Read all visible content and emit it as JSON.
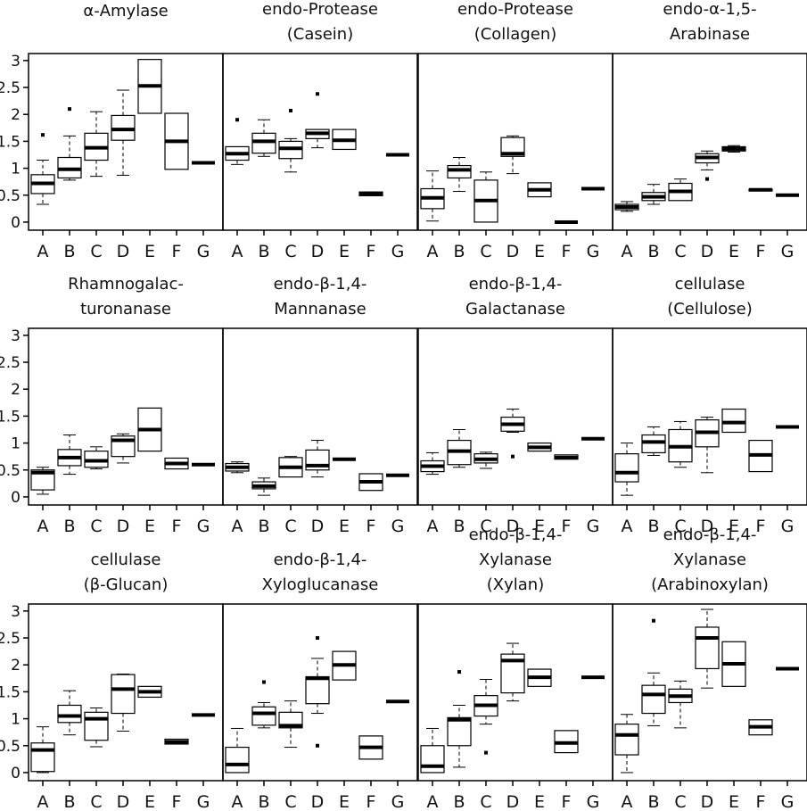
{
  "chart_data": [
    {
      "type": "box",
      "title": [
        "α-Amylase"
      ],
      "categories": [
        "A",
        "B",
        "C",
        "D",
        "E",
        "F",
        "G"
      ],
      "ylim": [
        -0.15,
        3.13
      ],
      "yticks": [
        0,
        0.5,
        1,
        1.5,
        2,
        2.5,
        3
      ],
      "boxes": [
        {
          "whislo": 0.33,
          "q1": 0.53,
          "med": 0.72,
          "q3": 0.88,
          "whishi": 1.15,
          "fliers": [
            1.62
          ]
        },
        {
          "whislo": 0.78,
          "q1": 0.82,
          "med": 0.98,
          "q3": 1.2,
          "whishi": 1.6,
          "fliers": [
            2.1
          ]
        },
        {
          "whislo": 0.85,
          "q1": 1.15,
          "med": 1.38,
          "q3": 1.65,
          "whishi": 2.05
        },
        {
          "whislo": 0.87,
          "q1": 1.52,
          "med": 1.72,
          "q3": 1.98,
          "whishi": 2.45
        },
        {
          "whislo": 2.02,
          "q1": 2.02,
          "med": 2.53,
          "q3": 3.02,
          "whishi": 3.02
        },
        {
          "whislo": 0.98,
          "q1": 0.98,
          "med": 1.5,
          "q3": 2.02,
          "whishi": 2.02
        },
        {
          "whislo": 1.1,
          "q1": 1.1,
          "med": 1.1,
          "q3": 1.1,
          "whishi": 1.1
        }
      ]
    },
    {
      "type": "box",
      "title": [
        "endo-Protease",
        "(Casein)"
      ],
      "categories": [
        "A",
        "B",
        "C",
        "D",
        "E",
        "F",
        "G"
      ],
      "ylim": [
        -0.15,
        3.13
      ],
      "boxes": [
        {
          "whislo": 1.07,
          "q1": 1.15,
          "med": 1.27,
          "q3": 1.4,
          "whishi": 1.4,
          "fliers": [
            1.9
          ]
        },
        {
          "whislo": 1.22,
          "q1": 1.28,
          "med": 1.5,
          "q3": 1.65,
          "whishi": 1.9
        },
        {
          "whislo": 0.93,
          "q1": 1.18,
          "med": 1.37,
          "q3": 1.5,
          "whishi": 1.55,
          "fliers": [
            2.07
          ]
        },
        {
          "whislo": 1.38,
          "q1": 1.55,
          "med": 1.65,
          "q3": 1.72,
          "whishi": 1.72,
          "fliers": [
            2.38
          ]
        },
        {
          "whislo": 1.35,
          "q1": 1.35,
          "med": 1.52,
          "q3": 1.72,
          "whishi": 1.72
        },
        {
          "whislo": 0.49,
          "q1": 0.49,
          "med": 0.52,
          "q3": 0.56,
          "whishi": 0.56
        },
        {
          "whislo": 1.25,
          "q1": 1.25,
          "med": 1.25,
          "q3": 1.25,
          "whishi": 1.25
        }
      ]
    },
    {
      "type": "box",
      "title": [
        "endo-Protease",
        "(Collagen)"
      ],
      "categories": [
        "A",
        "B",
        "C",
        "D",
        "E",
        "F",
        "G"
      ],
      "ylim": [
        -0.15,
        3.13
      ],
      "boxes": [
        {
          "whislo": 0.02,
          "q1": 0.25,
          "med": 0.45,
          "q3": 0.62,
          "whishi": 0.95
        },
        {
          "whislo": 0.57,
          "q1": 0.82,
          "med": 0.97,
          "q3": 1.05,
          "whishi": 1.2
        },
        {
          "whislo": 0.0,
          "q1": 0.0,
          "med": 0.4,
          "q3": 0.78,
          "whishi": 0.93
        },
        {
          "whislo": 0.9,
          "q1": 1.22,
          "med": 1.27,
          "q3": 1.57,
          "whishi": 1.6
        },
        {
          "whislo": 0.47,
          "q1": 0.47,
          "med": 0.6,
          "q3": 0.73,
          "whishi": 0.73
        },
        {
          "whislo": 0.0,
          "q1": 0.0,
          "med": 0.0,
          "q3": 0.0,
          "whishi": 0.0
        },
        {
          "whislo": 0.62,
          "q1": 0.62,
          "med": 0.62,
          "q3": 0.62,
          "whishi": 0.62
        }
      ]
    },
    {
      "type": "box",
      "title": [
        "endo-α-1,5-",
        "Arabinase"
      ],
      "categories": [
        "A",
        "B",
        "C",
        "D",
        "E",
        "F",
        "G"
      ],
      "ylim": [
        -0.15,
        3.13
      ],
      "boxes": [
        {
          "whislo": 0.2,
          "q1": 0.23,
          "med": 0.28,
          "q3": 0.33,
          "whishi": 0.38
        },
        {
          "whislo": 0.33,
          "q1": 0.4,
          "med": 0.47,
          "q3": 0.55,
          "whishi": 0.7
        },
        {
          "whislo": 0.4,
          "q1": 0.4,
          "med": 0.57,
          "q3": 0.72,
          "whishi": 0.8
        },
        {
          "whislo": 0.97,
          "q1": 1.1,
          "med": 1.2,
          "q3": 1.27,
          "whishi": 1.32,
          "fliers": [
            0.8
          ]
        },
        {
          "whislo": 1.3,
          "q1": 1.32,
          "med": 1.36,
          "q3": 1.4,
          "whishi": 1.42
        },
        {
          "whislo": 0.58,
          "q1": 0.58,
          "med": 0.6,
          "q3": 0.61,
          "whishi": 0.61
        },
        {
          "whislo": 0.5,
          "q1": 0.5,
          "med": 0.5,
          "q3": 0.5,
          "whishi": 0.5
        }
      ]
    },
    {
      "type": "box",
      "title": [
        "Rhamnogalac-",
        "turonanase"
      ],
      "categories": [
        "A",
        "B",
        "C",
        "D",
        "E",
        "F",
        "G"
      ],
      "ylim": [
        -0.15,
        3.13
      ],
      "yticks": [
        0,
        0.5,
        1,
        1.5,
        2,
        2.5,
        3
      ],
      "boxes": [
        {
          "whislo": 0.05,
          "q1": 0.13,
          "med": 0.45,
          "q3": 0.5,
          "whishi": 0.55
        },
        {
          "whislo": 0.42,
          "q1": 0.58,
          "med": 0.73,
          "q3": 0.88,
          "whishi": 1.15
        },
        {
          "whislo": 0.52,
          "q1": 0.55,
          "med": 0.67,
          "q3": 0.85,
          "whishi": 0.93
        },
        {
          "whislo": 0.63,
          "q1": 0.75,
          "med": 1.05,
          "q3": 1.13,
          "whishi": 1.17
        },
        {
          "whislo": 0.85,
          "q1": 0.85,
          "med": 1.25,
          "q3": 1.65,
          "whishi": 1.65
        },
        {
          "whislo": 0.52,
          "q1": 0.52,
          "med": 0.62,
          "q3": 0.72,
          "whishi": 0.72
        },
        {
          "whislo": 0.6,
          "q1": 0.6,
          "med": 0.6,
          "q3": 0.6,
          "whishi": 0.6
        }
      ]
    },
    {
      "type": "box",
      "title": [
        "endo-β-1,4-",
        "Mannanase"
      ],
      "categories": [
        "A",
        "B",
        "C",
        "D",
        "E",
        "F",
        "G"
      ],
      "ylim": [
        -0.15,
        3.13
      ],
      "boxes": [
        {
          "whislo": 0.45,
          "q1": 0.48,
          "med": 0.55,
          "q3": 0.62,
          "whishi": 0.65
        },
        {
          "whislo": 0.03,
          "q1": 0.15,
          "med": 0.2,
          "q3": 0.28,
          "whishi": 0.35
        },
        {
          "whislo": 0.37,
          "q1": 0.37,
          "med": 0.55,
          "q3": 0.73,
          "whishi": 0.75
        },
        {
          "whislo": 0.37,
          "q1": 0.5,
          "med": 0.58,
          "q3": 0.87,
          "whishi": 1.05
        },
        {
          "whislo": 0.7,
          "q1": 0.7,
          "med": 0.7,
          "q3": 0.7,
          "whishi": 0.7
        },
        {
          "whislo": 0.12,
          "q1": 0.12,
          "med": 0.28,
          "q3": 0.43,
          "whishi": 0.43
        },
        {
          "whislo": 0.4,
          "q1": 0.4,
          "med": 0.4,
          "q3": 0.4,
          "whishi": 0.4
        }
      ]
    },
    {
      "type": "box",
      "title": [
        "endo-β-1,4-",
        "Galactanase"
      ],
      "categories": [
        "A",
        "B",
        "C",
        "D",
        "E",
        "F",
        "G"
      ],
      "ylim": [
        -0.15,
        3.13
      ],
      "boxes": [
        {
          "whislo": 0.42,
          "q1": 0.47,
          "med": 0.57,
          "q3": 0.67,
          "whishi": 0.82
        },
        {
          "whislo": 0.55,
          "q1": 0.6,
          "med": 0.85,
          "q3": 1.05,
          "whishi": 1.25
        },
        {
          "whislo": 0.53,
          "q1": 0.63,
          "med": 0.7,
          "q3": 0.8,
          "whishi": 0.83
        },
        {
          "whislo": 1.2,
          "q1": 1.22,
          "med": 1.35,
          "q3": 1.48,
          "whishi": 1.63,
          "fliers": [
            0.75
          ]
        },
        {
          "whislo": 0.85,
          "q1": 0.85,
          "med": 0.92,
          "q3": 1.0,
          "whishi": 1.0
        },
        {
          "whislo": 0.7,
          "q1": 0.7,
          "med": 0.73,
          "q3": 0.78,
          "whishi": 0.78
        },
        {
          "whislo": 1.08,
          "q1": 1.08,
          "med": 1.08,
          "q3": 1.08,
          "whishi": 1.08
        }
      ]
    },
    {
      "type": "box",
      "title": [
        "cellulase",
        "(Cellulose)"
      ],
      "categories": [
        "A",
        "B",
        "C",
        "D",
        "E",
        "F",
        "G"
      ],
      "ylim": [
        -0.15,
        3.13
      ],
      "boxes": [
        {
          "whislo": 0.03,
          "q1": 0.28,
          "med": 0.45,
          "q3": 0.8,
          "whishi": 1.0
        },
        {
          "whislo": 0.77,
          "q1": 0.82,
          "med": 1.02,
          "q3": 1.15,
          "whishi": 1.3
        },
        {
          "whislo": 0.55,
          "q1": 0.65,
          "med": 0.93,
          "q3": 1.25,
          "whishi": 1.4
        },
        {
          "whislo": 0.45,
          "q1": 0.93,
          "med": 1.2,
          "q3": 1.43,
          "whishi": 1.48
        },
        {
          "whislo": 1.2,
          "q1": 1.2,
          "med": 1.38,
          "q3": 1.63,
          "whishi": 1.63
        },
        {
          "whislo": 0.47,
          "q1": 0.47,
          "med": 0.78,
          "q3": 1.05,
          "whishi": 1.05
        },
        {
          "whislo": 1.3,
          "q1": 1.3,
          "med": 1.3,
          "q3": 1.3,
          "whishi": 1.3
        }
      ]
    },
    {
      "type": "box",
      "title": [
        "cellulase",
        "(β-Glucan)"
      ],
      "categories": [
        "A",
        "B",
        "C",
        "D",
        "E",
        "F",
        "G"
      ],
      "ylim": [
        -0.15,
        3.13
      ],
      "yticks": [
        0,
        0.5,
        1,
        1.5,
        2,
        2.5,
        3
      ],
      "boxes": [
        {
          "whislo": 0.0,
          "q1": 0.02,
          "med": 0.42,
          "q3": 0.55,
          "whishi": 0.85
        },
        {
          "whislo": 0.7,
          "q1": 0.93,
          "med": 1.05,
          "q3": 1.25,
          "whishi": 1.52
        },
        {
          "whislo": 0.48,
          "q1": 0.6,
          "med": 1.0,
          "q3": 1.12,
          "whishi": 1.2
        },
        {
          "whislo": 0.77,
          "q1": 1.1,
          "med": 1.55,
          "q3": 1.82,
          "whishi": 1.83
        },
        {
          "whislo": 1.4,
          "q1": 1.4,
          "med": 1.5,
          "q3": 1.6,
          "whishi": 1.6
        },
        {
          "whislo": 0.53,
          "q1": 0.53,
          "med": 0.57,
          "q3": 0.62,
          "whishi": 0.62
        },
        {
          "whislo": 1.07,
          "q1": 1.07,
          "med": 1.07,
          "q3": 1.07,
          "whishi": 1.07
        }
      ]
    },
    {
      "type": "box",
      "title": [
        "endo-β-1,4-",
        "Xyloglucanase"
      ],
      "categories": [
        "A",
        "B",
        "C",
        "D",
        "E",
        "F",
        "G"
      ],
      "ylim": [
        -0.15,
        3.13
      ],
      "boxes": [
        {
          "whislo": 0.0,
          "q1": 0.0,
          "med": 0.15,
          "q3": 0.47,
          "whishi": 0.82
        },
        {
          "whislo": 0.83,
          "q1": 0.88,
          "med": 1.1,
          "q3": 1.22,
          "whishi": 1.3,
          "fliers": [
            1.68
          ]
        },
        {
          "whislo": 0.47,
          "q1": 0.83,
          "med": 0.87,
          "q3": 1.12,
          "whishi": 1.33
        },
        {
          "whislo": 1.1,
          "q1": 1.28,
          "med": 1.75,
          "q3": 1.78,
          "whishi": 2.12,
          "fliers": [
            2.5,
            0.5
          ]
        },
        {
          "whislo": 1.72,
          "q1": 1.72,
          "med": 2.0,
          "q3": 2.25,
          "whishi": 2.25
        },
        {
          "whislo": 0.25,
          "q1": 0.25,
          "med": 0.47,
          "q3": 0.68,
          "whishi": 0.68
        },
        {
          "whislo": 1.32,
          "q1": 1.32,
          "med": 1.32,
          "q3": 1.32,
          "whishi": 1.32
        }
      ]
    },
    {
      "type": "box",
      "title": [
        "endo-β-1,4-",
        "Xylanase",
        "(Xylan)"
      ],
      "categories": [
        "A",
        "B",
        "C",
        "D",
        "E",
        "F",
        "G"
      ],
      "ylim": [
        -0.15,
        3.13
      ],
      "boxes": [
        {
          "whislo": 0.0,
          "q1": 0.0,
          "med": 0.12,
          "q3": 0.5,
          "whishi": 0.82
        },
        {
          "whislo": 0.1,
          "q1": 0.5,
          "med": 0.98,
          "q3": 1.02,
          "whishi": 1.25,
          "fliers": [
            1.87
          ]
        },
        {
          "whislo": 0.9,
          "q1": 1.05,
          "med": 1.25,
          "q3": 1.43,
          "whishi": 1.73,
          "fliers": [
            0.37
          ]
        },
        {
          "whislo": 1.33,
          "q1": 1.48,
          "med": 2.08,
          "q3": 2.2,
          "whishi": 2.4
        },
        {
          "whislo": 1.6,
          "q1": 1.6,
          "med": 1.77,
          "q3": 1.92,
          "whishi": 1.92
        },
        {
          "whislo": 0.37,
          "q1": 0.37,
          "med": 0.55,
          "q3": 0.78,
          "whishi": 0.78
        },
        {
          "whislo": 1.77,
          "q1": 1.77,
          "med": 1.77,
          "q3": 1.77,
          "whishi": 1.77
        }
      ]
    },
    {
      "type": "box",
      "title": [
        "endo-β-1,4-",
        "Xylanase",
        "(Arabinoxylan)"
      ],
      "categories": [
        "A",
        "B",
        "C",
        "D",
        "E",
        "F",
        "G"
      ],
      "ylim": [
        -0.15,
        3.13
      ],
      "boxes": [
        {
          "whislo": 0.0,
          "q1": 0.33,
          "med": 0.7,
          "q3": 0.9,
          "whishi": 1.08
        },
        {
          "whislo": 0.87,
          "q1": 1.1,
          "med": 1.45,
          "q3": 1.62,
          "whishi": 1.85,
          "fliers": [
            2.82
          ]
        },
        {
          "whislo": 0.83,
          "q1": 1.3,
          "med": 1.42,
          "q3": 1.55,
          "whishi": 1.7
        },
        {
          "whislo": 1.57,
          "q1": 1.93,
          "med": 2.5,
          "q3": 2.7,
          "whishi": 3.03
        },
        {
          "whislo": 1.6,
          "q1": 1.6,
          "med": 2.02,
          "q3": 2.43,
          "whishi": 2.43
        },
        {
          "whislo": 0.7,
          "q1": 0.7,
          "med": 0.85,
          "q3": 0.98,
          "whishi": 0.98
        },
        {
          "whislo": 1.93,
          "q1": 1.93,
          "med": 1.93,
          "q3": 1.93,
          "whishi": 1.93
        }
      ]
    }
  ]
}
